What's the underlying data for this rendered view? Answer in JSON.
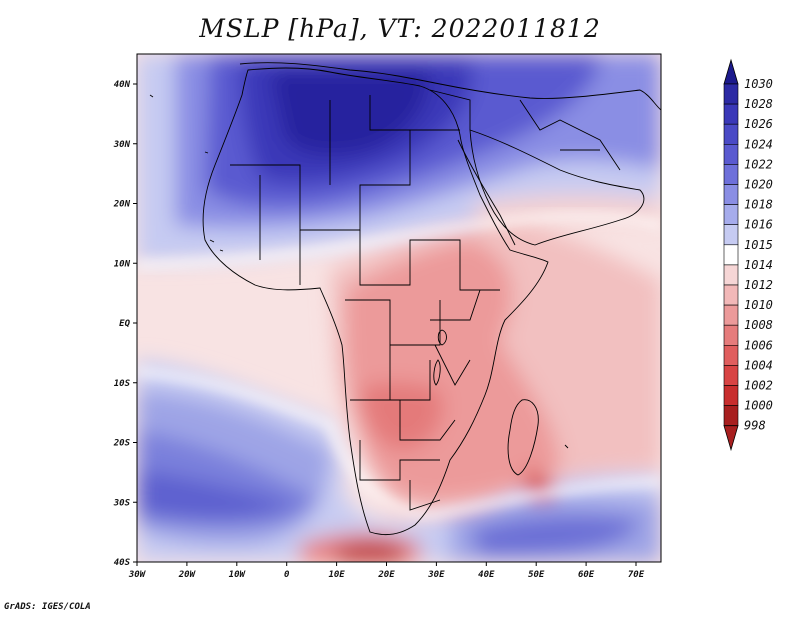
{
  "title": "MSLP [hPa], VT: 2022011812",
  "credit": "GrADS: IGES/COLA",
  "lat_labels": [
    "40N",
    "30N",
    "20N",
    "10N",
    "EQ",
    "10S",
    "20S",
    "30S",
    "40S"
  ],
  "lon_labels": [
    "30W",
    "20W",
    "10W",
    "0",
    "10E",
    "20E",
    "30E",
    "40E",
    "50E",
    "60E",
    "70E"
  ],
  "colorbar": {
    "levels": [
      "1030",
      "1028",
      "1026",
      "1024",
      "1022",
      "1020",
      "1018",
      "1016",
      "1015",
      "1014",
      "1012",
      "1010",
      "1008",
      "1006",
      "1004",
      "1002",
      "1000",
      "998"
    ],
    "colors": [
      "#1c1a8c",
      "#2c2aa4",
      "#3a38b8",
      "#4a4ac6",
      "#5a5ad0",
      "#6e70da",
      "#8a8ee4",
      "#a6ace c",
      "#c6cbf2",
      "#ffffff",
      "#f6d6d6",
      "#f2b8b8",
      "#ec9a9a",
      "#e67c7c",
      "#e05e5e",
      "#d84444",
      "#c82e2e",
      "#a81f1f"
    ]
  },
  "colors": {
    "high_dark": "#26249e",
    "high_mid": "#5a5ad0",
    "high_light": "#c6cbf2",
    "neutral": "#f8e6e6",
    "low_light": "#f2c0c0",
    "low_mid": "#ec9a9a",
    "low_dark": "#b42222"
  }
}
